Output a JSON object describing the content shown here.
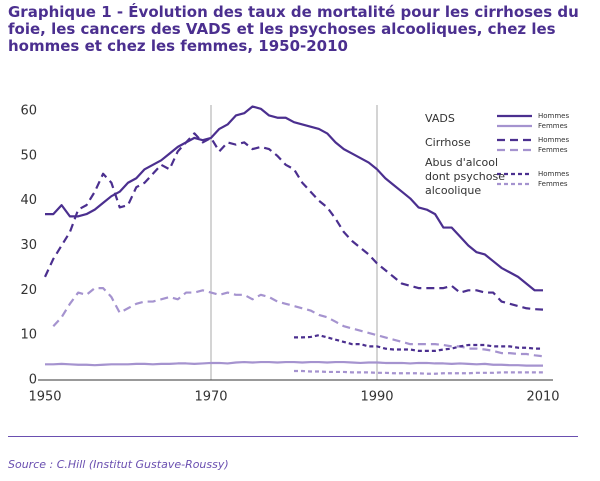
{
  "chart_data": {
    "type": "line",
    "title": "Graphique 1 - Évolution des taux de mortalité pour les cirrhoses du foie, les cancers des VADS et les psychoses alcooliques, chez les hommes et chez les femmes, 1950-2010",
    "source": "Source : C.Hill (Institut Gustave-Roussy)",
    "x": [
      1950,
      1951,
      1952,
      1953,
      1954,
      1955,
      1956,
      1957,
      1958,
      1959,
      1960,
      1961,
      1962,
      1963,
      1964,
      1965,
      1966,
      1967,
      1968,
      1969,
      1970,
      1971,
      1972,
      1973,
      1974,
      1975,
      1976,
      1977,
      1978,
      1979,
      1980,
      1981,
      1982,
      1983,
      1984,
      1985,
      1986,
      1987,
      1988,
      1989,
      1990,
      1991,
      1992,
      1993,
      1994,
      1995,
      1996,
      1997,
      1998,
      1999,
      2000,
      2001,
      2002,
      2003,
      2004,
      2005,
      2006,
      2007,
      2008,
      2009,
      2010
    ],
    "xlim": [
      1950,
      2010
    ],
    "xticks": [
      1950,
      1970,
      1990,
      2010
    ],
    "xgrid": true,
    "ylim": [
      0,
      60
    ],
    "yticks": [
      0,
      10,
      20,
      30,
      40,
      50,
      60
    ],
    "groups": [
      {
        "label": "VADS",
        "series": [
          {
            "name": "Hommes",
            "color": "#4b2f8f",
            "dash": "solid",
            "values": [
              37,
              37,
              39,
              36.5,
              36.5,
              37,
              38,
              39.5,
              41,
              42,
              44,
              45,
              47,
              48,
              49,
              50.5,
              52,
              53,
              54,
              53.5,
              54,
              56,
              57,
              59,
              59.5,
              61,
              60.5,
              59,
              58.5,
              58.5,
              57.5,
              57,
              56.5,
              56,
              55,
              53,
              51.5,
              50.5,
              49.5,
              48.5,
              47,
              45,
              43.5,
              42,
              40.5,
              38.5,
              38,
              37,
              34,
              34,
              32,
              30,
              28.5,
              28,
              26.5,
              25,
              24,
              23,
              21.5,
              20,
              20
            ]
          },
          {
            "name": "Femmes",
            "color": "#a593cf",
            "dash": "solid",
            "values": [
              3.5,
              3.5,
              3.6,
              3.5,
              3.4,
              3.4,
              3.3,
              3.4,
              3.5,
              3.5,
              3.5,
              3.6,
              3.6,
              3.5,
              3.6,
              3.6,
              3.7,
              3.7,
              3.6,
              3.7,
              3.8,
              3.8,
              3.7,
              3.9,
              4,
              3.9,
              4,
              4,
              3.9,
              4,
              4,
              3.9,
              4,
              4,
              3.9,
              4,
              4,
              3.9,
              3.8,
              3.9,
              3.9,
              3.8,
              3.8,
              3.8,
              3.7,
              3.8,
              3.8,
              3.7,
              3.7,
              3.6,
              3.7,
              3.6,
              3.5,
              3.6,
              3.4,
              3.4,
              3.3,
              3.3,
              3.2,
              3.2,
              3.2
            ]
          }
        ]
      },
      {
        "label": "Cirrhose",
        "series": [
          {
            "name": "Hommes",
            "color": "#4b2f8f",
            "dash": "long",
            "values": [
              23,
              27,
              30,
              33,
              38,
              39,
              42,
              46,
              44,
              38.5,
              39,
              43,
              44,
              46,
              48,
              47,
              51,
              53,
              55,
              53,
              54,
              51,
              53,
              52.5,
              53,
              51.5,
              52,
              51.5,
              50,
              48,
              47,
              44,
              42,
              40,
              38.5,
              36,
              33,
              31,
              29.5,
              28,
              26,
              24.5,
              23,
              21.5,
              21,
              20.5,
              20.5,
              20.5,
              20.5,
              21,
              19.5,
              20,
              20,
              19.5,
              19.5,
              17.5,
              17,
              16.5,
              16,
              15.8,
              15.7
            ]
          },
          {
            "name": "Femmes",
            "color": "#a593cf",
            "dash": "long",
            "values": [
              null,
              12,
              14,
              17,
              19.5,
              19,
              20.5,
              20.5,
              18.5,
              15,
              16,
              17,
              17.5,
              17.5,
              18,
              18.5,
              18,
              19.5,
              19.5,
              20,
              19.5,
              19,
              19.5,
              19,
              19,
              18,
              19,
              18.5,
              17.5,
              17,
              16.5,
              16,
              15.5,
              14.5,
              14,
              13,
              12,
              11.5,
              11,
              10.5,
              10,
              9.5,
              9,
              8.5,
              8,
              8,
              8,
              8,
              7.8,
              7.5,
              7.5,
              7,
              7,
              6.8,
              6.5,
              6,
              6,
              5.8,
              5.8,
              5.5,
              5.3
            ]
          }
        ]
      },
      {
        "label": "Abus d'alcool dont psychose alcoolique",
        "series": [
          {
            "name": "Hommes",
            "color": "#4b2f8f",
            "dash": "short",
            "values": [
              null,
              null,
              null,
              null,
              null,
              null,
              null,
              null,
              null,
              null,
              null,
              null,
              null,
              null,
              null,
              null,
              null,
              null,
              null,
              null,
              null,
              null,
              null,
              null,
              null,
              null,
              null,
              null,
              null,
              null,
              9.5,
              9.5,
              9.6,
              10,
              9.5,
              9,
              8.5,
              8,
              8,
              7.5,
              7.5,
              7,
              6.8,
              6.8,
              6.8,
              6.5,
              6.5,
              6.5,
              6.8,
              7,
              7.5,
              7.8,
              7.8,
              7.8,
              7.5,
              7.5,
              7.5,
              7.2,
              7.2,
              7,
              7
            ]
          },
          {
            "name": "Femmes",
            "color": "#a593cf",
            "dash": "short",
            "values": [
              null,
              null,
              null,
              null,
              null,
              null,
              null,
              null,
              null,
              null,
              null,
              null,
              null,
              null,
              null,
              null,
              null,
              null,
              null,
              null,
              null,
              null,
              null,
              null,
              null,
              null,
              null,
              null,
              null,
              null,
              2,
              2,
              1.9,
              1.9,
              1.8,
              1.8,
              1.8,
              1.7,
              1.7,
              1.7,
              1.6,
              1.6,
              1.5,
              1.5,
              1.5,
              1.5,
              1.4,
              1.4,
              1.5,
              1.5,
              1.5,
              1.5,
              1.6,
              1.6,
              1.6,
              1.7,
              1.7,
              1.7,
              1.7,
              1.7,
              1.7
            ]
          }
        ]
      }
    ]
  }
}
